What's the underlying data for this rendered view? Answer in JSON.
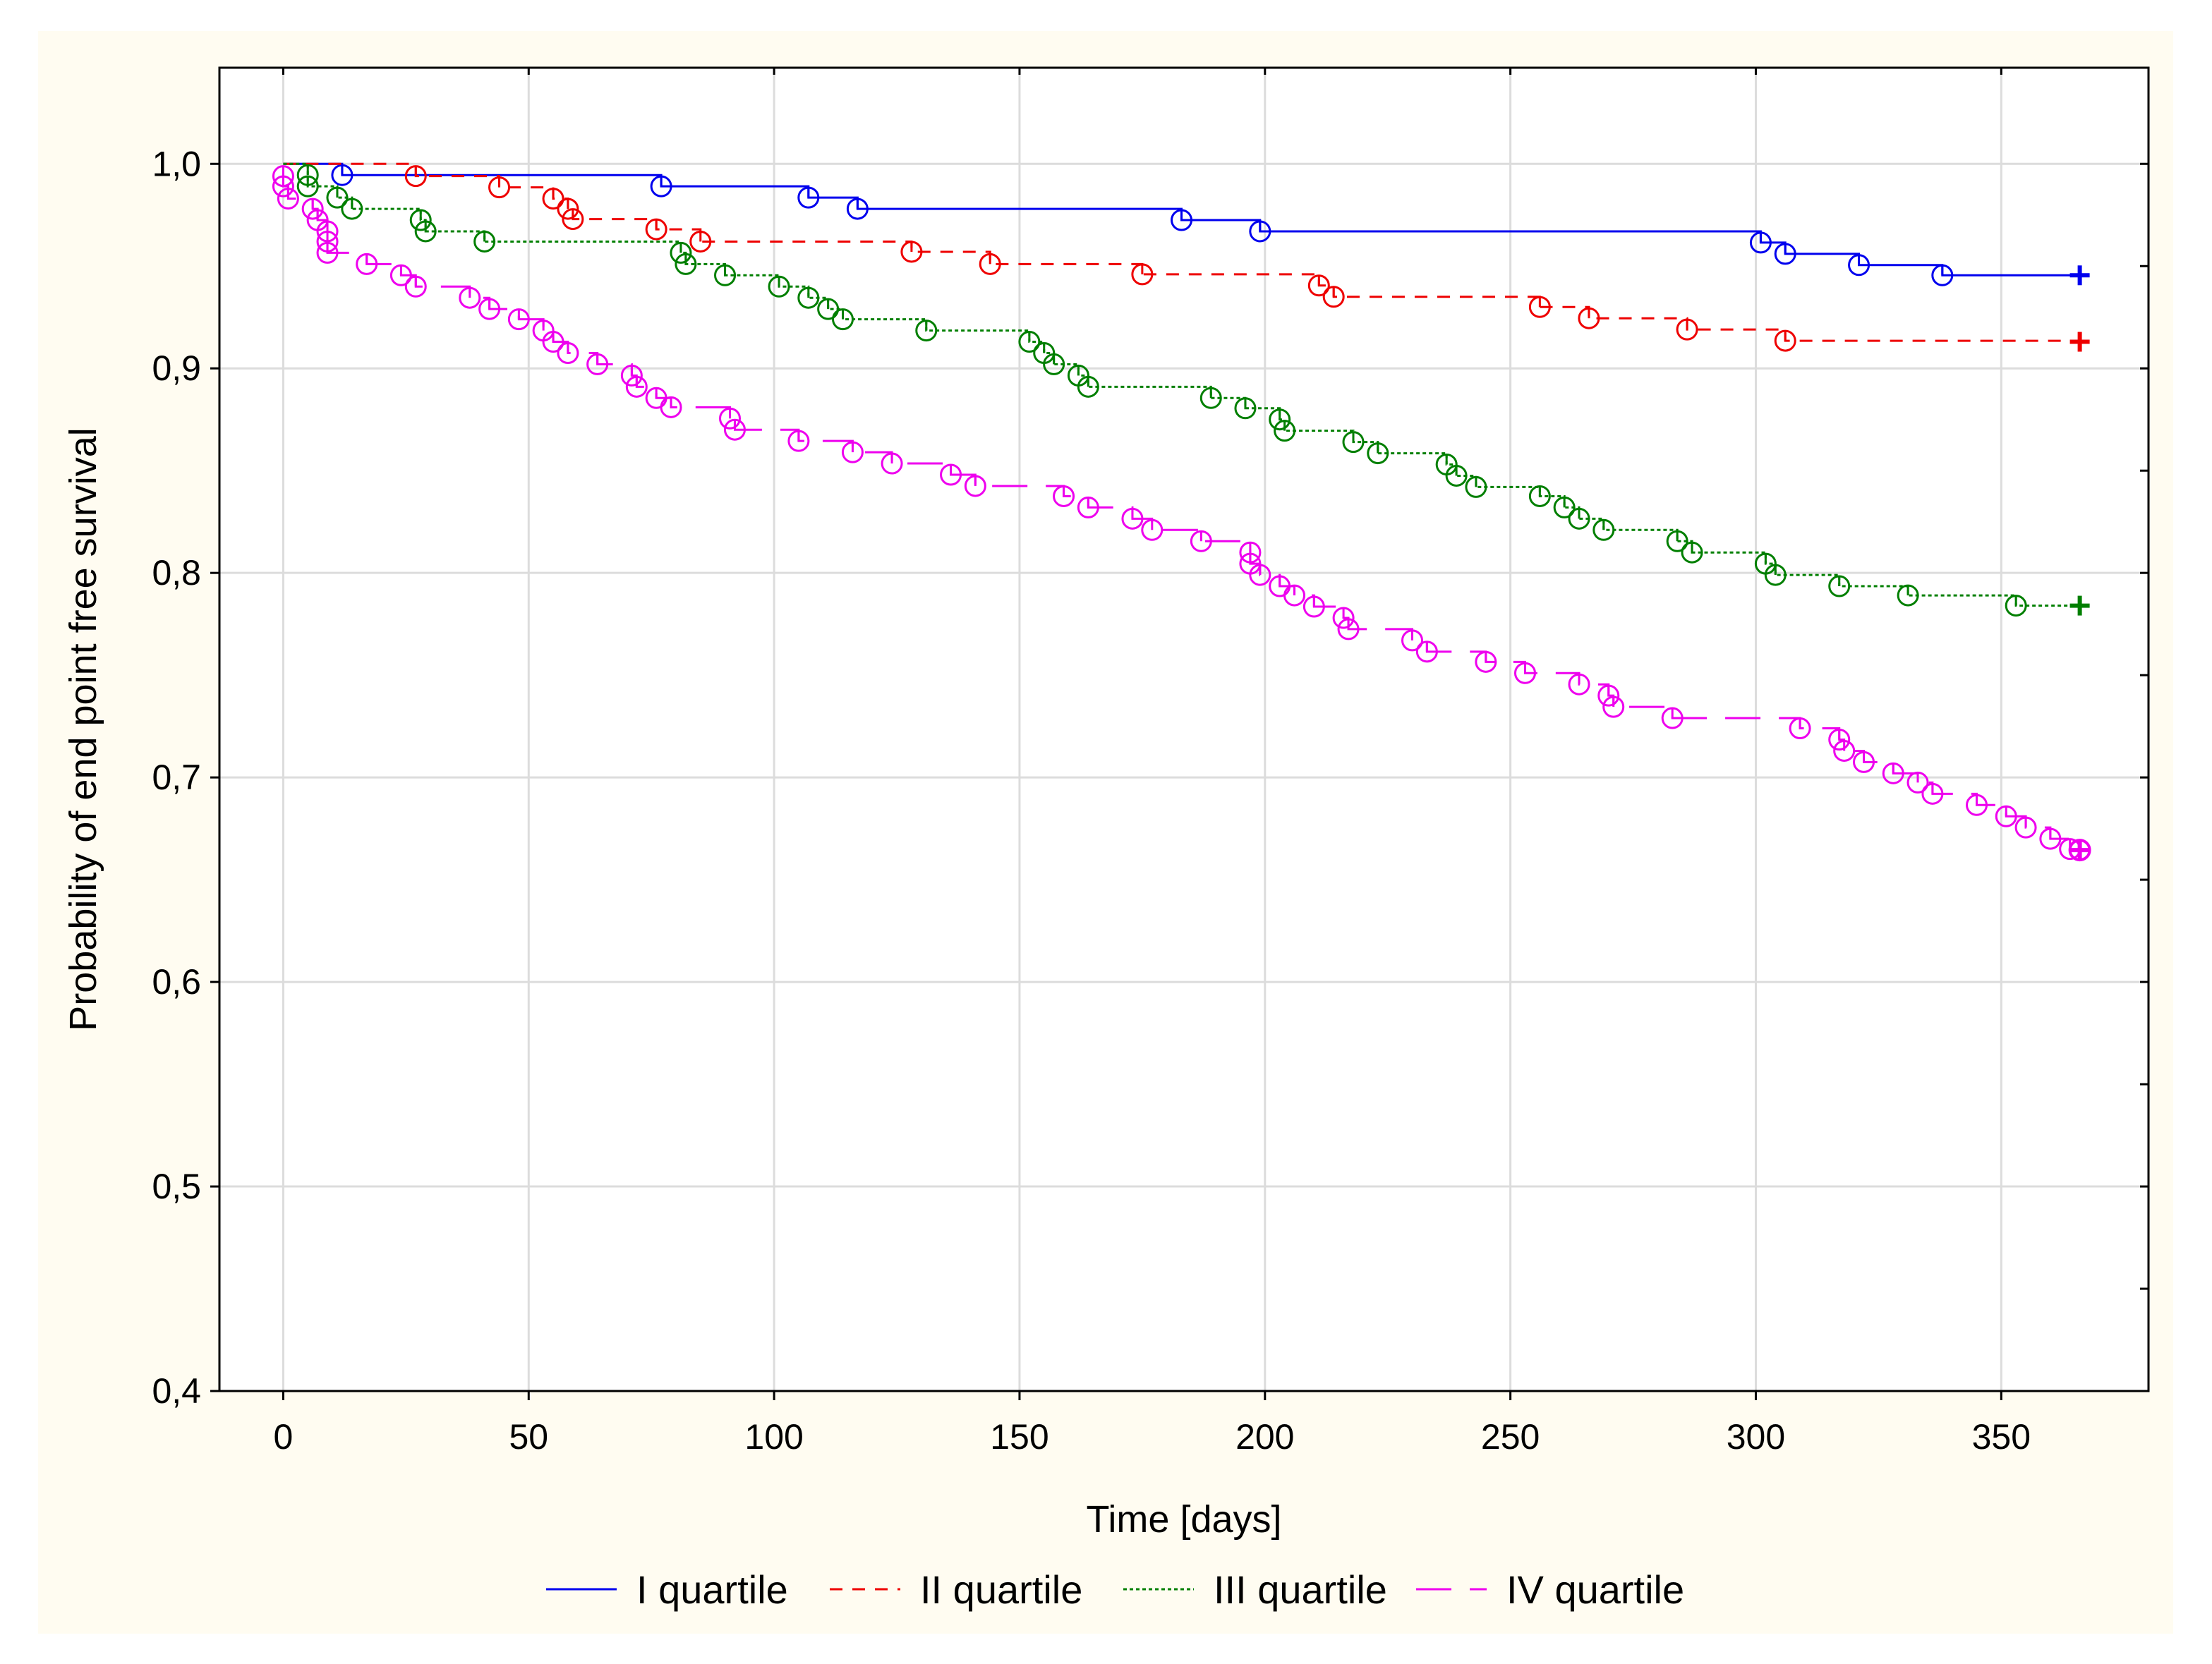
{
  "chart_data": {
    "type": "line",
    "subtype": "kaplan-meier",
    "title": "",
    "xlabel": "Time [days]",
    "ylabel": "Probability of end point free survival",
    "xlim": [
      -13,
      380
    ],
    "ylim": [
      0.4,
      1.047
    ],
    "xticks": [
      0,
      50,
      100,
      150,
      200,
      250,
      300,
      350
    ],
    "yticks": [
      0.4,
      0.5,
      0.6,
      0.7,
      0.8,
      0.9,
      1.0
    ],
    "xtick_labels": [
      "0",
      "50",
      "100",
      "150",
      "200",
      "250",
      "300",
      "350"
    ],
    "ytick_labels": [
      "0,4",
      "0,5",
      "0,6",
      "0,7",
      "0,8",
      "0,9",
      "1,0"
    ],
    "grid": true,
    "legend_position": "bottom-center",
    "series": [
      {
        "name": "I quartile",
        "color": "#0000ee",
        "line_style": "solid",
        "end_point": [
          366,
          0.9455
        ],
        "points": [
          [
            0,
            1.0
          ],
          [
            12,
            0.9945
          ],
          [
            77,
            0.989
          ],
          [
            107,
            0.9835
          ],
          [
            117,
            0.978
          ],
          [
            183,
            0.9725
          ],
          [
            199,
            0.967
          ],
          [
            301,
            0.9615
          ],
          [
            306,
            0.956
          ],
          [
            321,
            0.9505
          ],
          [
            338,
            0.9455
          ]
        ]
      },
      {
        "name": "II quartile",
        "color": "#ee0000",
        "line_style": "dashed",
        "end_point": [
          366,
          0.913
        ],
        "points": [
          [
            0,
            1.0
          ],
          [
            27,
            0.994
          ],
          [
            44,
            0.9885
          ],
          [
            55,
            0.983
          ],
          [
            58,
            0.978
          ],
          [
            59,
            0.973
          ],
          [
            76,
            0.968
          ],
          [
            85,
            0.962
          ],
          [
            128,
            0.957
          ],
          [
            144,
            0.951
          ],
          [
            175,
            0.946
          ],
          [
            211,
            0.9405
          ],
          [
            214,
            0.935
          ],
          [
            256,
            0.93
          ],
          [
            266,
            0.9245
          ],
          [
            286,
            0.919
          ],
          [
            306,
            0.9135
          ]
        ]
      },
      {
        "name": "III quartile",
        "color": "#007f00",
        "line_style": "dotted",
        "end_point": [
          366,
          0.784
        ],
        "points": [
          [
            0,
            1.0
          ],
          [
            5,
            0.9945
          ],
          [
            5,
            0.989
          ],
          [
            11,
            0.9835
          ],
          [
            14,
            0.978
          ],
          [
            28,
            0.9725
          ],
          [
            29,
            0.967
          ],
          [
            41,
            0.962
          ],
          [
            81,
            0.9565
          ],
          [
            82,
            0.951
          ],
          [
            90,
            0.9455
          ],
          [
            101,
            0.94
          ],
          [
            107,
            0.9345
          ],
          [
            111,
            0.929
          ],
          [
            114,
            0.924
          ],
          [
            131,
            0.9185
          ],
          [
            152,
            0.913
          ],
          [
            155,
            0.9075
          ],
          [
            157,
            0.902
          ],
          [
            162,
            0.8965
          ],
          [
            164,
            0.891
          ],
          [
            189,
            0.8855
          ],
          [
            196,
            0.8805
          ],
          [
            203,
            0.875
          ],
          [
            204,
            0.8695
          ],
          [
            218,
            0.864
          ],
          [
            223,
            0.8585
          ],
          [
            237,
            0.853
          ],
          [
            239,
            0.8475
          ],
          [
            243,
            0.842
          ],
          [
            256,
            0.8375
          ],
          [
            261,
            0.832
          ],
          [
            264,
            0.8265
          ],
          [
            269,
            0.821
          ],
          [
            284,
            0.8155
          ],
          [
            287,
            0.81
          ],
          [
            302,
            0.8045
          ],
          [
            304,
            0.799
          ],
          [
            317,
            0.7935
          ],
          [
            331,
            0.789
          ],
          [
            353,
            0.784
          ]
        ]
      },
      {
        "name": "IV quartile",
        "color": "#ee00ee",
        "line_style": "long-dash",
        "end_point": [
          366,
          0.6645
        ],
        "points": [
          [
            0,
            0.994
          ],
          [
            0,
            0.989
          ],
          [
            1,
            0.983
          ],
          [
            6,
            0.978
          ],
          [
            7,
            0.9725
          ],
          [
            9,
            0.967
          ],
          [
            9,
            0.962
          ],
          [
            9,
            0.9565
          ],
          [
            17,
            0.951
          ],
          [
            24,
            0.9455
          ],
          [
            27,
            0.94
          ],
          [
            38,
            0.9345
          ],
          [
            42,
            0.929
          ],
          [
            48,
            0.924
          ],
          [
            53,
            0.9185
          ],
          [
            55,
            0.913
          ],
          [
            58,
            0.9075
          ],
          [
            64,
            0.902
          ],
          [
            71,
            0.8965
          ],
          [
            72,
            0.891
          ],
          [
            76,
            0.8855
          ],
          [
            79,
            0.881
          ],
          [
            91,
            0.8755
          ],
          [
            92,
            0.87
          ],
          [
            105,
            0.8645
          ],
          [
            116,
            0.859
          ],
          [
            124,
            0.8535
          ],
          [
            136,
            0.848
          ],
          [
            141,
            0.8425
          ],
          [
            159,
            0.8375
          ],
          [
            164,
            0.832
          ],
          [
            173,
            0.8265
          ],
          [
            177,
            0.821
          ],
          [
            187,
            0.8155
          ],
          [
            197,
            0.81
          ],
          [
            197,
            0.8045
          ],
          [
            199,
            0.799
          ],
          [
            203,
            0.7935
          ],
          [
            206,
            0.789
          ],
          [
            210,
            0.7835
          ],
          [
            216,
            0.778
          ],
          [
            217,
            0.7725
          ],
          [
            230,
            0.767
          ],
          [
            233,
            0.7615
          ],
          [
            245,
            0.7565
          ],
          [
            253,
            0.751
          ],
          [
            264,
            0.7455
          ],
          [
            270,
            0.74
          ],
          [
            271,
            0.7345
          ],
          [
            283,
            0.729
          ],
          [
            309,
            0.724
          ],
          [
            317,
            0.7185
          ],
          [
            318,
            0.713
          ],
          [
            322,
            0.7075
          ],
          [
            328,
            0.702
          ],
          [
            333,
            0.6975
          ],
          [
            336,
            0.692
          ],
          [
            345,
            0.6865
          ],
          [
            351,
            0.681
          ],
          [
            355,
            0.6755
          ],
          [
            360,
            0.67
          ],
          [
            364,
            0.665
          ]
        ]
      }
    ]
  }
}
